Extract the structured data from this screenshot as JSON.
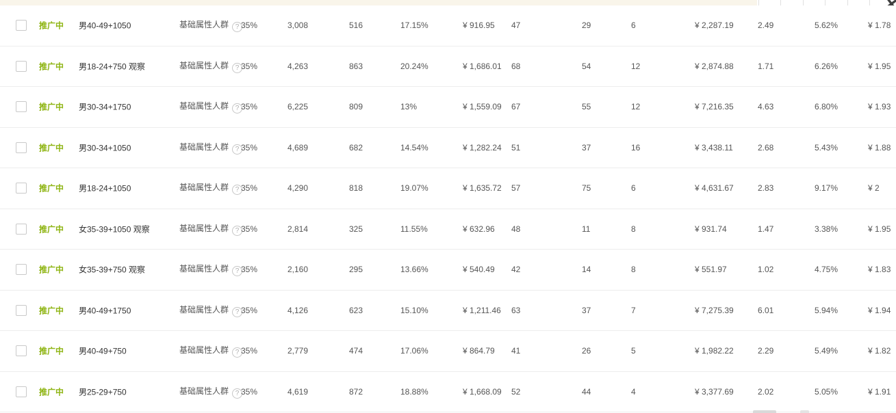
{
  "colors": {
    "status_green": "#8eb412",
    "cream_band": "#f9f5ea",
    "row_divider": "#ededed",
    "text": "#555555",
    "text_dark": "#333333"
  },
  "icons": {
    "help": "?",
    "corner_cursor": "✕"
  },
  "table": {
    "status_label": "推广中",
    "type_label": "基础属性人群",
    "rows": [
      {
        "name": "男40-49+1050",
        "premium": "35%",
        "impressions": "3,008",
        "clicks": "516",
        "ctr": "17.15%",
        "cost": "¥ 916.95",
        "metric_a": "47",
        "metric_b": "29",
        "metric_c": "6",
        "amount": "¥ 2,287.19",
        "roi": "2.49",
        "rate": "5.62%",
        "ppc": "¥ 1.78"
      },
      {
        "name": "男18-24+750 观察",
        "premium": "35%",
        "impressions": "4,263",
        "clicks": "863",
        "ctr": "20.24%",
        "cost": "¥ 1,686.01",
        "metric_a": "68",
        "metric_b": "54",
        "metric_c": "12",
        "amount": "¥ 2,874.88",
        "roi": "1.71",
        "rate": "6.26%",
        "ppc": "¥ 1.95"
      },
      {
        "name": "男30-34+1750",
        "premium": "35%",
        "impressions": "6,225",
        "clicks": "809",
        "ctr": "13%",
        "cost": "¥ 1,559.09",
        "metric_a": "67",
        "metric_b": "55",
        "metric_c": "12",
        "amount": "¥ 7,216.35",
        "roi": "4.63",
        "rate": "6.80%",
        "ppc": "¥ 1.93"
      },
      {
        "name": "男30-34+1050",
        "premium": "35%",
        "impressions": "4,689",
        "clicks": "682",
        "ctr": "14.54%",
        "cost": "¥ 1,282.24",
        "metric_a": "51",
        "metric_b": "37",
        "metric_c": "16",
        "amount": "¥ 3,438.11",
        "roi": "2.68",
        "rate": "5.43%",
        "ppc": "¥ 1.88"
      },
      {
        "name": "男18-24+1050",
        "premium": "35%",
        "impressions": "4,290",
        "clicks": "818",
        "ctr": "19.07%",
        "cost": "¥ 1,635.72",
        "metric_a": "57",
        "metric_b": "75",
        "metric_c": "6",
        "amount": "¥ 4,631.67",
        "roi": "2.83",
        "rate": "9.17%",
        "ppc": "¥ 2"
      },
      {
        "name": "女35-39+1050 观察",
        "premium": "35%",
        "impressions": "2,814",
        "clicks": "325",
        "ctr": "11.55%",
        "cost": "¥ 632.96",
        "metric_a": "48",
        "metric_b": "11",
        "metric_c": "8",
        "amount": "¥ 931.74",
        "roi": "1.47",
        "rate": "3.38%",
        "ppc": "¥ 1.95"
      },
      {
        "name": "女35-39+750 观察",
        "premium": "35%",
        "impressions": "2,160",
        "clicks": "295",
        "ctr": "13.66%",
        "cost": "¥ 540.49",
        "metric_a": "42",
        "metric_b": "14",
        "metric_c": "8",
        "amount": "¥ 551.97",
        "roi": "1.02",
        "rate": "4.75%",
        "ppc": "¥ 1.83"
      },
      {
        "name": "男40-49+1750",
        "premium": "35%",
        "impressions": "4,126",
        "clicks": "623",
        "ctr": "15.10%",
        "cost": "¥ 1,211.46",
        "metric_a": "63",
        "metric_b": "37",
        "metric_c": "7",
        "amount": "¥ 7,275.39",
        "roi": "6.01",
        "rate": "5.94%",
        "ppc": "¥ 1.94"
      },
      {
        "name": "男40-49+750",
        "premium": "35%",
        "impressions": "2,779",
        "clicks": "474",
        "ctr": "17.06%",
        "cost": "¥ 864.79",
        "metric_a": "41",
        "metric_b": "26",
        "metric_c": "5",
        "amount": "¥ 1,982.22",
        "roi": "2.29",
        "rate": "5.49%",
        "ppc": "¥ 1.82"
      },
      {
        "name": "男25-29+750",
        "premium": "35%",
        "impressions": "4,619",
        "clicks": "872",
        "ctr": "18.88%",
        "cost": "¥ 1,668.09",
        "metric_a": "52",
        "metric_b": "44",
        "metric_c": "4",
        "amount": "¥ 3,377.69",
        "roi": "2.02",
        "rate": "5.05%",
        "ppc": "¥ 1.91"
      }
    ]
  }
}
